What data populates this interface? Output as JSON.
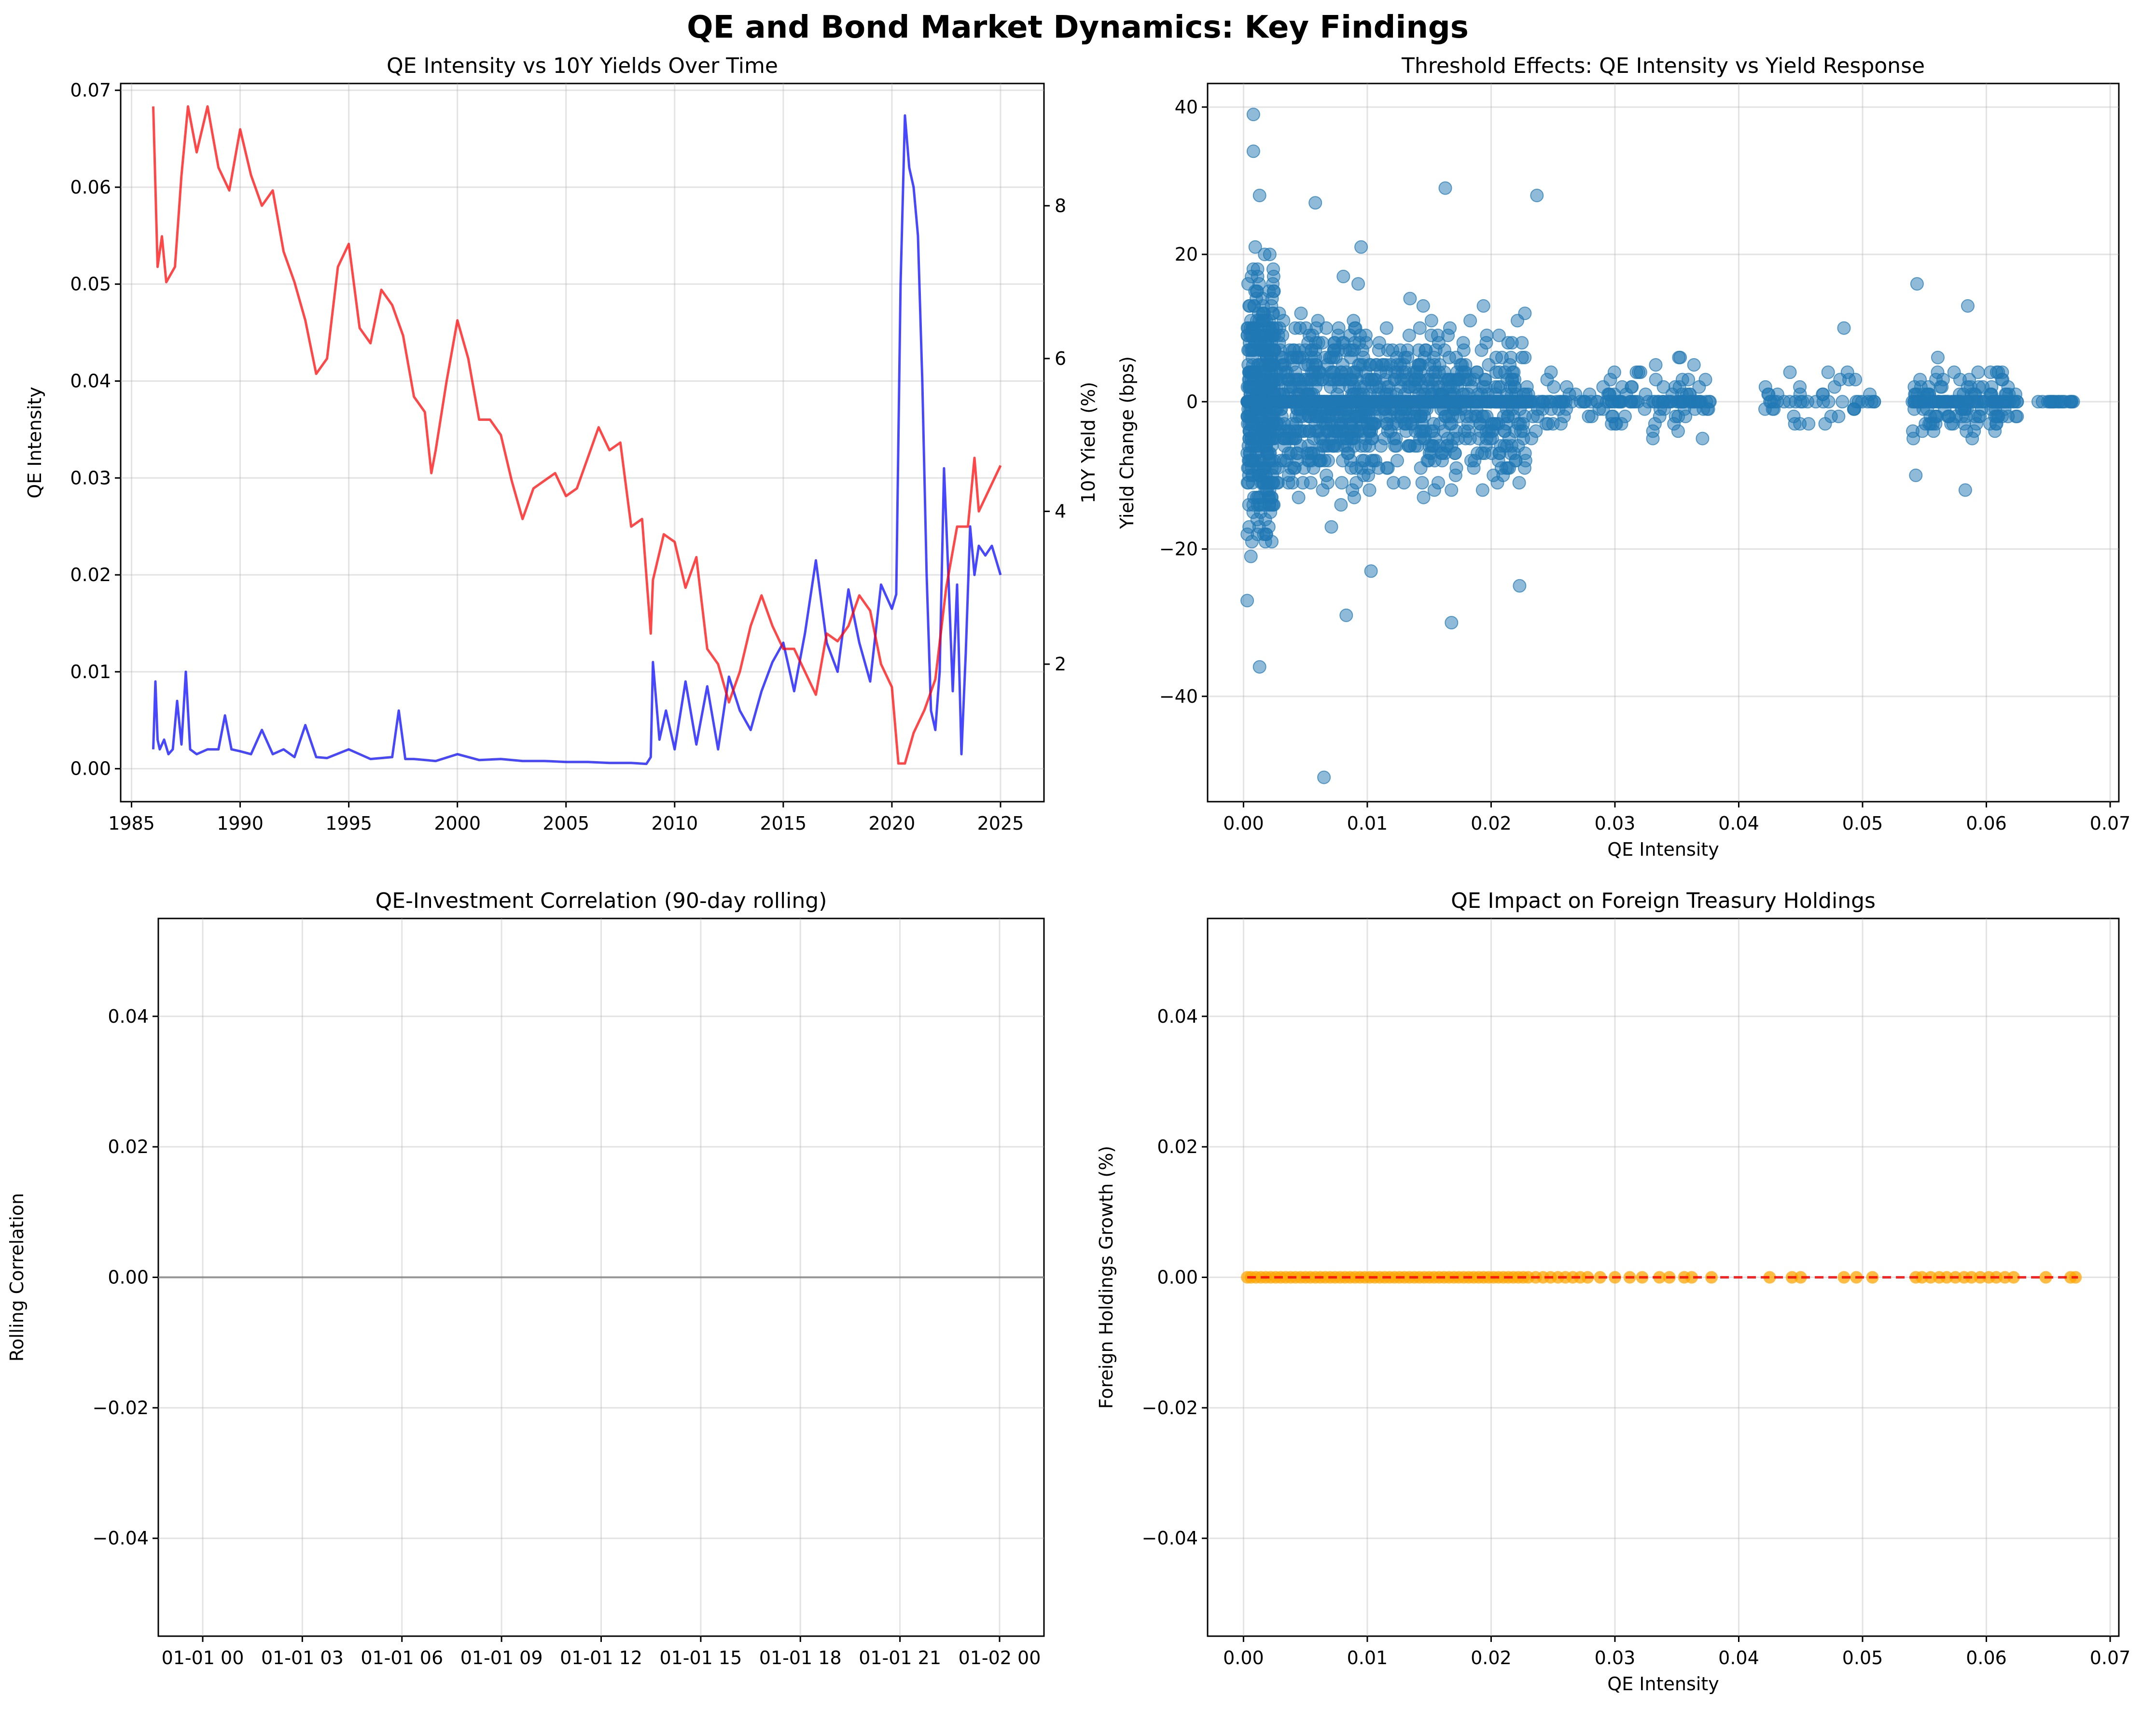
{
  "figure": {
    "title": "QE and Bond Market Dynamics: Key Findings"
  },
  "colors": {
    "qe_line": "#0000ff",
    "yield_line": "#ff0000",
    "scatter": "#1f77b4",
    "foreign_points": "#ffa500",
    "trend_line": "#ff0000",
    "zero_line": "#808080",
    "grid": "#b0b0b0"
  },
  "chart_data": [
    {
      "type": "line",
      "title": "QE Intensity vs 10Y Yields Over Time",
      "xlabel": "",
      "ylabel": "QE Intensity",
      "y2label": "10Y Yield (%)",
      "xlim": [
        1984.5,
        2027.0
      ],
      "ylim": [
        -0.0034,
        0.0707
      ],
      "y2lim": [
        0.2,
        9.6
      ],
      "xticks": [
        1985,
        1990,
        1995,
        2000,
        2005,
        2010,
        2015,
        2020,
        2025
      ],
      "yticks": [
        0.0,
        0.01,
        0.02,
        0.03,
        0.04,
        0.05,
        0.06,
        0.07
      ],
      "ytick_labels": [
        "0.00",
        "0.01",
        "0.02",
        "0.03",
        "0.04",
        "0.05",
        "0.06",
        "0.07"
      ],
      "y2ticks": [
        2,
        4,
        6,
        8
      ],
      "grid": true,
      "series": [
        {
          "name": "QE Intensity",
          "axis": "left",
          "color": "#0000ff",
          "x": [
            1986.0,
            1986.1,
            1986.2,
            1986.3,
            1986.5,
            1986.7,
            1986.9,
            1987.1,
            1987.3,
            1987.5,
            1987.7,
            1988.0,
            1988.5,
            1989.0,
            1989.3,
            1989.6,
            1990.0,
            1990.5,
            1991.0,
            1991.5,
            1992.0,
            1992.5,
            1993.0,
            1993.5,
            1994.0,
            1995.0,
            1996.0,
            1997.0,
            1997.3,
            1997.6,
            1998.0,
            1999.0,
            2000.0,
            2001.0,
            2002.0,
            2003.0,
            2004.0,
            2005.0,
            2006.0,
            2007.0,
            2008.0,
            2008.7,
            2008.9,
            2009.0,
            2009.3,
            2009.6,
            2010.0,
            2010.5,
            2011.0,
            2011.5,
            2012.0,
            2012.5,
            2013.0,
            2013.5,
            2014.0,
            2014.5,
            2015.0,
            2015.5,
            2016.0,
            2016.5,
            2017.0,
            2017.5,
            2018.0,
            2018.5,
            2019.0,
            2019.5,
            2020.0,
            2020.2,
            2020.4,
            2020.6,
            2020.8,
            2021.0,
            2021.2,
            2021.4,
            2021.6,
            2021.8,
            2022.0,
            2022.2,
            2022.4,
            2022.6,
            2022.8,
            2023.0,
            2023.2,
            2023.4,
            2023.6,
            2023.8,
            2024.0,
            2024.3,
            2024.6,
            2025.0
          ],
          "values": [
            0.002,
            0.009,
            0.003,
            0.002,
            0.003,
            0.0015,
            0.002,
            0.007,
            0.0025,
            0.01,
            0.002,
            0.0015,
            0.002,
            0.002,
            0.0055,
            0.002,
            0.0018,
            0.0015,
            0.004,
            0.0015,
            0.002,
            0.0012,
            0.0045,
            0.0012,
            0.0011,
            0.002,
            0.001,
            0.0012,
            0.006,
            0.001,
            0.001,
            0.0008,
            0.0015,
            0.0009,
            0.001,
            0.0008,
            0.0008,
            0.0007,
            0.0007,
            0.0006,
            0.0006,
            0.0005,
            0.0012,
            0.011,
            0.003,
            0.006,
            0.002,
            0.009,
            0.0025,
            0.0085,
            0.002,
            0.0095,
            0.006,
            0.004,
            0.008,
            0.011,
            0.013,
            0.008,
            0.014,
            0.0215,
            0.013,
            0.01,
            0.0185,
            0.013,
            0.009,
            0.019,
            0.0165,
            0.018,
            0.05,
            0.0674,
            0.062,
            0.06,
            0.055,
            0.04,
            0.02,
            0.006,
            0.004,
            0.01,
            0.031,
            0.02,
            0.008,
            0.019,
            0.0015,
            0.012,
            0.025,
            0.02,
            0.023,
            0.022,
            0.023,
            0.02
          ]
        },
        {
          "name": "10Y Yield (%)",
          "axis": "right",
          "color": "#ff0000",
          "x": [
            1986.0,
            1986.2,
            1986.4,
            1986.6,
            1987.0,
            1987.3,
            1987.6,
            1988.0,
            1988.5,
            1989.0,
            1989.5,
            1990.0,
            1990.5,
            1991.0,
            1991.5,
            1992.0,
            1992.5,
            1993.0,
            1993.5,
            1994.0,
            1994.5,
            1995.0,
            1995.5,
            1996.0,
            1996.5,
            1997.0,
            1997.5,
            1998.0,
            1998.5,
            1998.8,
            1999.0,
            1999.5,
            2000.0,
            2000.5,
            2001.0,
            2001.5,
            2002.0,
            2002.5,
            2003.0,
            2003.5,
            2004.0,
            2004.5,
            2005.0,
            2005.5,
            2006.0,
            2006.5,
            2007.0,
            2007.5,
            2008.0,
            2008.5,
            2008.9,
            2009.0,
            2009.5,
            2010.0,
            2010.5,
            2011.0,
            2011.5,
            2012.0,
            2012.5,
            2013.0,
            2013.5,
            2014.0,
            2014.5,
            2015.0,
            2015.5,
            2016.0,
            2016.5,
            2017.0,
            2017.5,
            2018.0,
            2018.5,
            2019.0,
            2019.5,
            2020.0,
            2020.3,
            2020.6,
            2021.0,
            2021.5,
            2022.0,
            2022.5,
            2023.0,
            2023.5,
            2023.8,
            2024.0,
            2024.5,
            2025.0
          ],
          "values": [
            9.3,
            7.2,
            7.6,
            7.0,
            7.2,
            8.4,
            9.3,
            8.7,
            9.3,
            8.5,
            8.2,
            9.0,
            8.4,
            8.0,
            8.2,
            7.4,
            7.0,
            6.5,
            5.8,
            6.0,
            7.2,
            7.5,
            6.4,
            6.2,
            6.9,
            6.7,
            6.3,
            5.5,
            5.3,
            4.5,
            4.8,
            5.7,
            6.5,
            6.0,
            5.2,
            5.2,
            5.0,
            4.4,
            3.9,
            4.3,
            4.4,
            4.5,
            4.2,
            4.3,
            4.7,
            5.1,
            4.8,
            4.9,
            3.8,
            3.9,
            2.4,
            3.1,
            3.7,
            3.6,
            3.0,
            3.4,
            2.2,
            2.0,
            1.5,
            1.9,
            2.5,
            2.9,
            2.5,
            2.2,
            2.2,
            1.9,
            1.6,
            2.4,
            2.3,
            2.5,
            2.9,
            2.7,
            2.0,
            1.7,
            0.7,
            0.7,
            1.1,
            1.4,
            1.8,
            3.0,
            3.8,
            3.8,
            4.7,
            4.0,
            4.3,
            4.6
          ]
        }
      ]
    },
    {
      "type": "scatter",
      "title": "Threshold Effects: QE Intensity vs Yield Response",
      "xlabel": "QE Intensity",
      "ylabel": "Yield Change (bps)",
      "xlim": [
        -0.0029,
        0.0707
      ],
      "ylim": [
        -54.3,
        43.2
      ],
      "xticks": [
        0.0,
        0.01,
        0.02,
        0.03,
        0.04,
        0.05,
        0.06,
        0.07
      ],
      "xtick_labels": [
        "0.00",
        "0.01",
        "0.02",
        "0.03",
        "0.04",
        "0.05",
        "0.06",
        "0.07"
      ],
      "yticks": [
        -40,
        -20,
        0,
        20,
        40
      ],
      "grid": true,
      "clusters": [
        {
          "x_from": 0.0003,
          "x_to": 0.0025,
          "spread": 18,
          "count": 700
        },
        {
          "x_from": 0.0025,
          "x_to": 0.01,
          "spread": 12,
          "count": 650
        },
        {
          "x_from": 0.01,
          "x_to": 0.023,
          "spread": 11,
          "count": 700
        },
        {
          "x_from": 0.023,
          "x_to": 0.038,
          "spread": 5,
          "count": 160
        },
        {
          "x_from": 0.042,
          "x_to": 0.051,
          "spread": 5,
          "count": 50
        },
        {
          "x_from": 0.054,
          "x_to": 0.0625,
          "spread": 5,
          "count": 180
        },
        {
          "x_from": 0.064,
          "x_to": 0.0675,
          "spread": 0,
          "count": 20
        }
      ],
      "points": [
        {
          "x": 0.0008,
          "y": 39
        },
        {
          "x": 0.0008,
          "y": 34
        },
        {
          "x": 0.0013,
          "y": 28
        },
        {
          "x": 0.0058,
          "y": 27
        },
        {
          "x": 0.0163,
          "y": 29
        },
        {
          "x": 0.0237,
          "y": 28
        },
        {
          "x": 0.0095,
          "y": 21
        },
        {
          "x": 0.0544,
          "y": 16
        },
        {
          "x": 0.0585,
          "y": 13
        },
        {
          "x": 0.0485,
          "y": 10
        },
        {
          "x": 0.0013,
          "y": -36
        },
        {
          "x": 0.0065,
          "y": -51
        },
        {
          "x": 0.0168,
          "y": -30
        },
        {
          "x": 0.0083,
          "y": -29
        },
        {
          "x": 0.0003,
          "y": -27
        },
        {
          "x": 0.0223,
          "y": -25
        },
        {
          "x": 0.0103,
          "y": -23
        },
        {
          "x": 0.0543,
          "y": -10
        },
        {
          "x": 0.0583,
          "y": -12
        }
      ]
    },
    {
      "type": "line",
      "title": "QE-Investment Correlation (90-day rolling)",
      "xlabel": "",
      "ylabel": "Rolling Correlation",
      "ylim": [
        -0.055,
        0.055
      ],
      "yticks": [
        -0.04,
        -0.02,
        0.0,
        0.02,
        0.04
      ],
      "ytick_labels": [
        "−0.04",
        "−0.02",
        "0.00",
        "0.02",
        "0.04"
      ],
      "xticks": [
        "01-01 00",
        "01-01 03",
        "01-01 06",
        "01-01 09",
        "01-01 12",
        "01-01 15",
        "01-01 18",
        "01-01 21",
        "01-02 00"
      ],
      "grid": true,
      "hline": 0,
      "series": []
    },
    {
      "type": "scatter",
      "title": "QE Impact on Foreign Treasury Holdings",
      "xlabel": "QE Intensity",
      "ylabel": "Foreign Holdings Growth (%)",
      "xlim": [
        -0.0029,
        0.0707
      ],
      "ylim": [
        -0.055,
        0.055
      ],
      "xticks": [
        0.0,
        0.01,
        0.02,
        0.03,
        0.04,
        0.05,
        0.06,
        0.07
      ],
      "xtick_labels": [
        "0.00",
        "0.01",
        "0.02",
        "0.03",
        "0.04",
        "0.05",
        "0.06",
        "0.07"
      ],
      "yticks": [
        -0.04,
        -0.02,
        0.0,
        0.02,
        0.04
      ],
      "ytick_labels": [
        "−0.04",
        "−0.02",
        "0.00",
        "0.02",
        "0.04"
      ],
      "grid": true,
      "points_y": 0,
      "x_points": [
        0.0003,
        0.0006,
        0.001,
        0.0014,
        0.0018,
        0.0022,
        0.0026,
        0.003,
        0.0034,
        0.0038,
        0.0042,
        0.0046,
        0.005,
        0.0054,
        0.0058,
        0.0062,
        0.0066,
        0.007,
        0.0074,
        0.0078,
        0.0082,
        0.0086,
        0.009,
        0.0094,
        0.0098,
        0.0102,
        0.0106,
        0.011,
        0.0114,
        0.0118,
        0.0122,
        0.0126,
        0.013,
        0.0134,
        0.0138,
        0.0142,
        0.0146,
        0.015,
        0.0154,
        0.0158,
        0.0162,
        0.0166,
        0.017,
        0.0174,
        0.0178,
        0.0182,
        0.0186,
        0.019,
        0.0194,
        0.0198,
        0.0202,
        0.0206,
        0.021,
        0.0214,
        0.0218,
        0.0222,
        0.0226,
        0.023,
        0.0236,
        0.0242,
        0.0248,
        0.0254,
        0.026,
        0.0266,
        0.0272,
        0.0278,
        0.0288,
        0.03,
        0.0312,
        0.0322,
        0.0336,
        0.0344,
        0.0356,
        0.0362,
        0.0378,
        0.0425,
        0.0443,
        0.045,
        0.0485,
        0.0495,
        0.0508,
        0.0543,
        0.0548,
        0.0555,
        0.0562,
        0.0568,
        0.0575,
        0.0582,
        0.0588,
        0.0595,
        0.0602,
        0.0608,
        0.0615,
        0.0622,
        0.0648,
        0.0668,
        0.0672
      ],
      "trend": {
        "x": [
          0.0003,
          0.0674
        ],
        "y": [
          0,
          0
        ]
      }
    }
  ]
}
